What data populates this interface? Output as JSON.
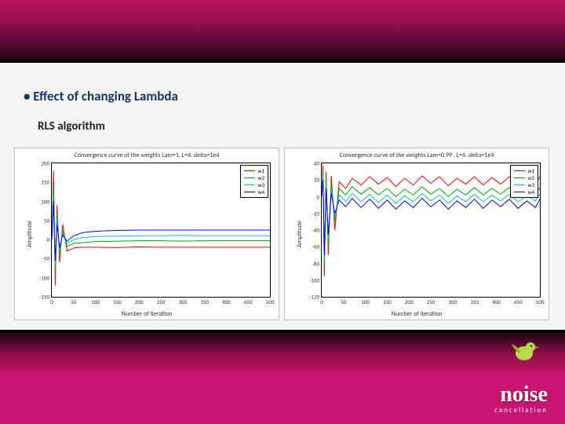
{
  "slide": {
    "bullet": "• Effect of changing Lambda",
    "subtitle": "RLS algorithm"
  },
  "logo": {
    "main": "noise",
    "sub": "cancellation"
  },
  "colors": {
    "slide_bg": "#c9156e",
    "panel_bg": "#f4f4f4",
    "bullet_color": "#14365d",
    "series": {
      "w1": "#ff0000",
      "w2": "#00aa00",
      "w3": "#00c8c8",
      "w4": "#0000ff"
    }
  },
  "charts": [
    {
      "type": "line",
      "title": "Convergence curve of the weights Lam=1, L=4, delta=1e4",
      "xlabel": "Number of Iteration",
      "ylabel": "Amplitude",
      "xlim": [
        0,
        500
      ],
      "xtick_step": 50,
      "ylim": [
        -150,
        200
      ],
      "ytick_step": 50,
      "background_color": "#ffffff",
      "grid_on": false,
      "legend": [
        "w1",
        "w2",
        "w3",
        "w4"
      ],
      "series": [
        {
          "name": "w1",
          "color": "#ff0000",
          "line_width": 1,
          "x": [
            0,
            4,
            8,
            12,
            18,
            25,
            35,
            50,
            70,
            100,
            150,
            200,
            250,
            300,
            350,
            400,
            450,
            500
          ],
          "y": [
            0,
            180,
            -120,
            90,
            -60,
            40,
            -30,
            -22,
            -20,
            -20,
            -21,
            -19,
            -20,
            -20,
            -20,
            -20,
            -20,
            -20
          ]
        },
        {
          "name": "w2",
          "color": "#00aa00",
          "line_width": 1,
          "x": [
            0,
            4,
            8,
            12,
            18,
            25,
            35,
            50,
            70,
            100,
            150,
            200,
            250,
            300,
            350,
            400,
            450,
            500
          ],
          "y": [
            0,
            140,
            -90,
            70,
            -40,
            25,
            -18,
            -10,
            -8,
            -5,
            -4,
            -3,
            -3,
            -4,
            -3,
            -3,
            -3,
            -3
          ]
        },
        {
          "name": "w3",
          "color": "#00c8c8",
          "line_width": 1,
          "x": [
            0,
            4,
            8,
            12,
            18,
            25,
            35,
            50,
            70,
            100,
            150,
            200,
            250,
            300,
            350,
            400,
            450,
            500
          ],
          "y": [
            0,
            120,
            -70,
            55,
            -30,
            18,
            -10,
            0,
            5,
            8,
            9,
            10,
            10,
            11,
            10,
            10,
            10,
            10
          ]
        },
        {
          "name": "w4",
          "color": "#0000ff",
          "line_width": 1,
          "x": [
            0,
            4,
            8,
            12,
            18,
            25,
            35,
            50,
            70,
            100,
            150,
            200,
            250,
            300,
            350,
            400,
            450,
            500
          ],
          "y": [
            0,
            100,
            -55,
            40,
            -20,
            12,
            -4,
            10,
            18,
            22,
            24,
            25,
            25,
            25,
            25,
            25,
            25,
            25
          ]
        }
      ]
    },
    {
      "type": "line",
      "title": "Convergence curve of the weights Lam=0.99 , L=4, delta=1e4",
      "xlabel": "Number of Iteration",
      "ylabel": "Amplitude",
      "xlim": [
        0,
        500
      ],
      "xtick_step": 50,
      "ylim": [
        -120,
        40
      ],
      "ytick_step": 20,
      "background_color": "#ffffff",
      "grid_on": false,
      "legend": [
        "w1",
        "w2",
        "w3",
        "w4"
      ],
      "series": [
        {
          "name": "w1",
          "color": "#ff0000",
          "line_width": 1,
          "x": [
            0,
            3,
            6,
            10,
            15,
            22,
            30,
            40,
            55,
            70,
            90,
            110,
            130,
            150,
            170,
            190,
            210,
            230,
            250,
            270,
            290,
            310,
            330,
            350,
            370,
            390,
            410,
            430,
            450,
            470,
            490,
            500
          ],
          "y": [
            0,
            38,
            -95,
            30,
            -70,
            25,
            -40,
            18,
            10,
            22,
            14,
            24,
            15,
            23,
            12,
            22,
            14,
            25,
            16,
            24,
            13,
            22,
            15,
            24,
            14,
            23,
            15,
            24,
            14,
            22,
            15,
            24
          ]
        },
        {
          "name": "w2",
          "color": "#00aa00",
          "line_width": 1,
          "x": [
            0,
            3,
            6,
            10,
            15,
            22,
            30,
            40,
            55,
            70,
            90,
            110,
            130,
            150,
            170,
            190,
            210,
            230,
            250,
            270,
            290,
            310,
            330,
            350,
            370,
            390,
            410,
            430,
            450,
            470,
            490,
            500
          ],
          "y": [
            0,
            30,
            -85,
            22,
            -60,
            18,
            -30,
            10,
            2,
            12,
            3,
            11,
            2,
            10,
            0,
            9,
            2,
            12,
            3,
            10,
            0,
            9,
            2,
            11,
            2,
            10,
            3,
            11,
            2,
            9,
            3,
            11
          ]
        },
        {
          "name": "w3",
          "color": "#00c8c8",
          "line_width": 1,
          "x": [
            0,
            3,
            6,
            10,
            15,
            22,
            30,
            40,
            55,
            70,
            90,
            110,
            130,
            150,
            170,
            190,
            210,
            230,
            250,
            270,
            290,
            310,
            330,
            350,
            370,
            390,
            410,
            430,
            450,
            470,
            490,
            500
          ],
          "y": [
            0,
            25,
            -78,
            15,
            -52,
            10,
            -25,
            2,
            -6,
            4,
            -6,
            3,
            -7,
            2,
            -8,
            1,
            -6,
            4,
            -5,
            2,
            -8,
            1,
            -6,
            3,
            -6,
            2,
            -5,
            3,
            -6,
            1,
            -5,
            3
          ]
        },
        {
          "name": "w4",
          "color": "#0000ff",
          "line_width": 1,
          "x": [
            0,
            3,
            6,
            10,
            15,
            22,
            30,
            40,
            55,
            70,
            90,
            110,
            130,
            150,
            170,
            190,
            210,
            230,
            250,
            270,
            290,
            310,
            330,
            350,
            370,
            390,
            410,
            430,
            450,
            470,
            490,
            500
          ],
          "y": [
            0,
            20,
            -70,
            10,
            -45,
            4,
            -20,
            -4,
            -12,
            -2,
            -13,
            -3,
            -14,
            -4,
            -15,
            -5,
            -13,
            -2,
            -12,
            -4,
            -15,
            -5,
            -13,
            -3,
            -14,
            -4,
            -12,
            -3,
            -14,
            -5,
            -13,
            -3
          ]
        }
      ]
    }
  ]
}
